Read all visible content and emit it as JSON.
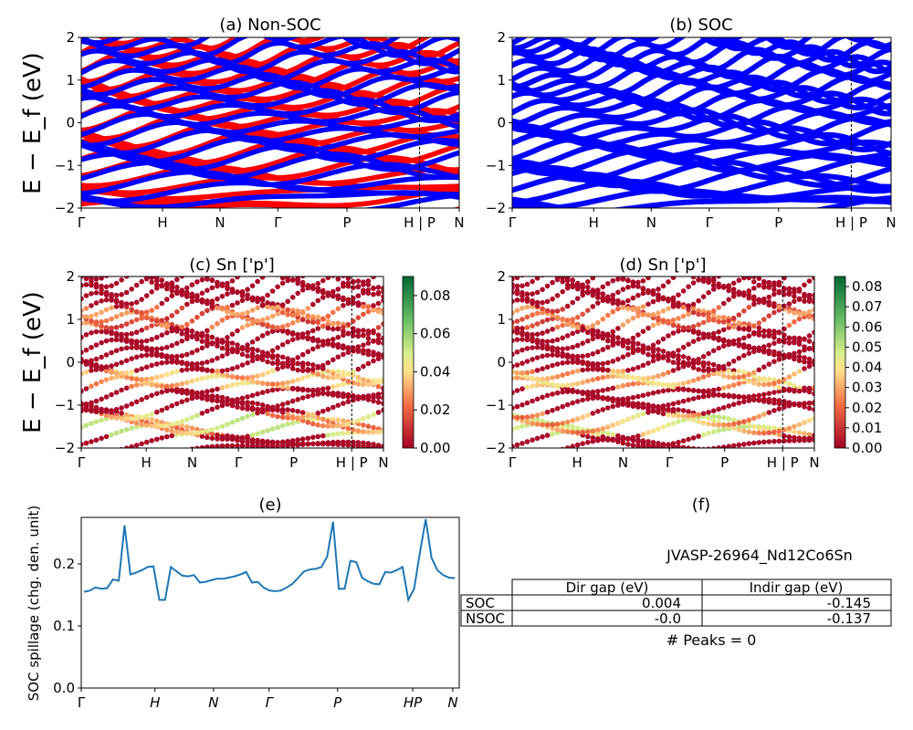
{
  "chart_data": [
    {
      "id": "a",
      "type": "line",
      "title": "(a) Non-SOC",
      "ylabel": "E − E_f (eV)",
      "ylim": [
        -2,
        2
      ],
      "yticks": [
        "−2",
        "−1",
        "0",
        "1",
        "2"
      ],
      "xticks": [
        "Γ",
        "H",
        "N",
        "Γ",
        "P",
        "H | P",
        "N"
      ],
      "series": [
        {
          "color": "#ff0000",
          "values": [
            -1.9,
            -1.45,
            -0.85,
            -0.35,
            0.2,
            0.75,
            1.3,
            1.8
          ]
        },
        {
          "color": "#0000ff",
          "values": [
            -1.7,
            -1.2,
            -0.6,
            -0.1,
            0.45,
            1.0,
            1.55,
            1.95
          ]
        }
      ]
    },
    {
      "id": "b",
      "type": "line",
      "title": "(b) SOC",
      "ylim": [
        -2,
        2
      ],
      "yticks": [
        "−2",
        "−1",
        "0",
        "1",
        "2"
      ],
      "xticks": [
        "Γ",
        "H",
        "N",
        "Γ",
        "P",
        "H | P",
        "N"
      ],
      "series": [
        {
          "color": "#0000ff",
          "values": [
            -1.9,
            -1.6,
            -1.3,
            -0.95,
            -0.6,
            -0.25,
            0.1,
            0.45,
            0.8,
            1.15,
            1.5,
            1.85
          ]
        }
      ]
    },
    {
      "id": "c",
      "type": "scatter",
      "title": "(c)  Sn ['p']",
      "ylabel": "E − E_f (eV)",
      "ylim": [
        -2,
        2
      ],
      "yticks": [
        "−2",
        "−1",
        "0",
        "1",
        "2"
      ],
      "xticks": [
        "Γ",
        "H",
        "N",
        "Γ",
        "P",
        "H | P",
        "N"
      ],
      "colorbar": {
        "min": 0.0,
        "max": 0.09,
        "ticks": [
          "0.00",
          "0.02",
          "0.04",
          "0.06",
          "0.08"
        ]
      }
    },
    {
      "id": "d",
      "type": "scatter",
      "title": "(d) Sn ['p']",
      "ylim": [
        -2,
        2
      ],
      "yticks": [
        "−2",
        "−1",
        "0",
        "1",
        "2"
      ],
      "xticks": [
        "Γ",
        "H",
        "N",
        "Γ",
        "P",
        "H | P",
        "N"
      ],
      "colorbar": {
        "min": 0.0,
        "max": 0.085,
        "ticks": [
          "0.00",
          "0.01",
          "0.02",
          "0.03",
          "0.04",
          "0.05",
          "0.06",
          "0.07",
          "0.08"
        ]
      }
    },
    {
      "id": "e",
      "type": "line",
      "title": "(e)",
      "ylabel": "SOC spillage (chg. den. unit)",
      "ylim": [
        0,
        0.275
      ],
      "yticks": [
        "0.0",
        "0.1",
        "0.2"
      ],
      "xticks": [
        "Γ",
        "H",
        "N",
        "Γ",
        "P",
        "HP",
        "N"
      ],
      "series": [
        {
          "color": "#1f77b4",
          "values": [
            0.155,
            0.157,
            0.162,
            0.16,
            0.161,
            0.175,
            0.173,
            0.262,
            0.183,
            0.186,
            0.19,
            0.195,
            0.196,
            0.142,
            0.142,
            0.195,
            0.188,
            0.181,
            0.18,
            0.182,
            0.17,
            0.171,
            0.174,
            0.176,
            0.176,
            0.178,
            0.18,
            0.183,
            0.187,
            0.17,
            0.171,
            0.162,
            0.157,
            0.156,
            0.157,
            0.162,
            0.168,
            0.178,
            0.188,
            0.191,
            0.192,
            0.195,
            0.212,
            0.268,
            0.16,
            0.16,
            0.205,
            0.203,
            0.178,
            0.172,
            0.168,
            0.167,
            0.187,
            0.186,
            0.19,
            0.195,
            0.142,
            0.16,
            0.218,
            0.272,
            0.21,
            0.19,
            0.182,
            0.178,
            0.177
          ]
        }
      ]
    }
  ],
  "panel_f": {
    "title": "(f)",
    "name": "JVASP-26964_Nd12Co6Sn",
    "table": {
      "headers": [
        "",
        "Dir gap (eV)",
        "Indir gap (eV)"
      ],
      "rows": [
        [
          "SOC",
          "0.004",
          "-0.145"
        ],
        [
          "NSOC",
          "-0.0",
          "-0.137"
        ]
      ]
    },
    "peaks": "# Peaks = 0"
  }
}
